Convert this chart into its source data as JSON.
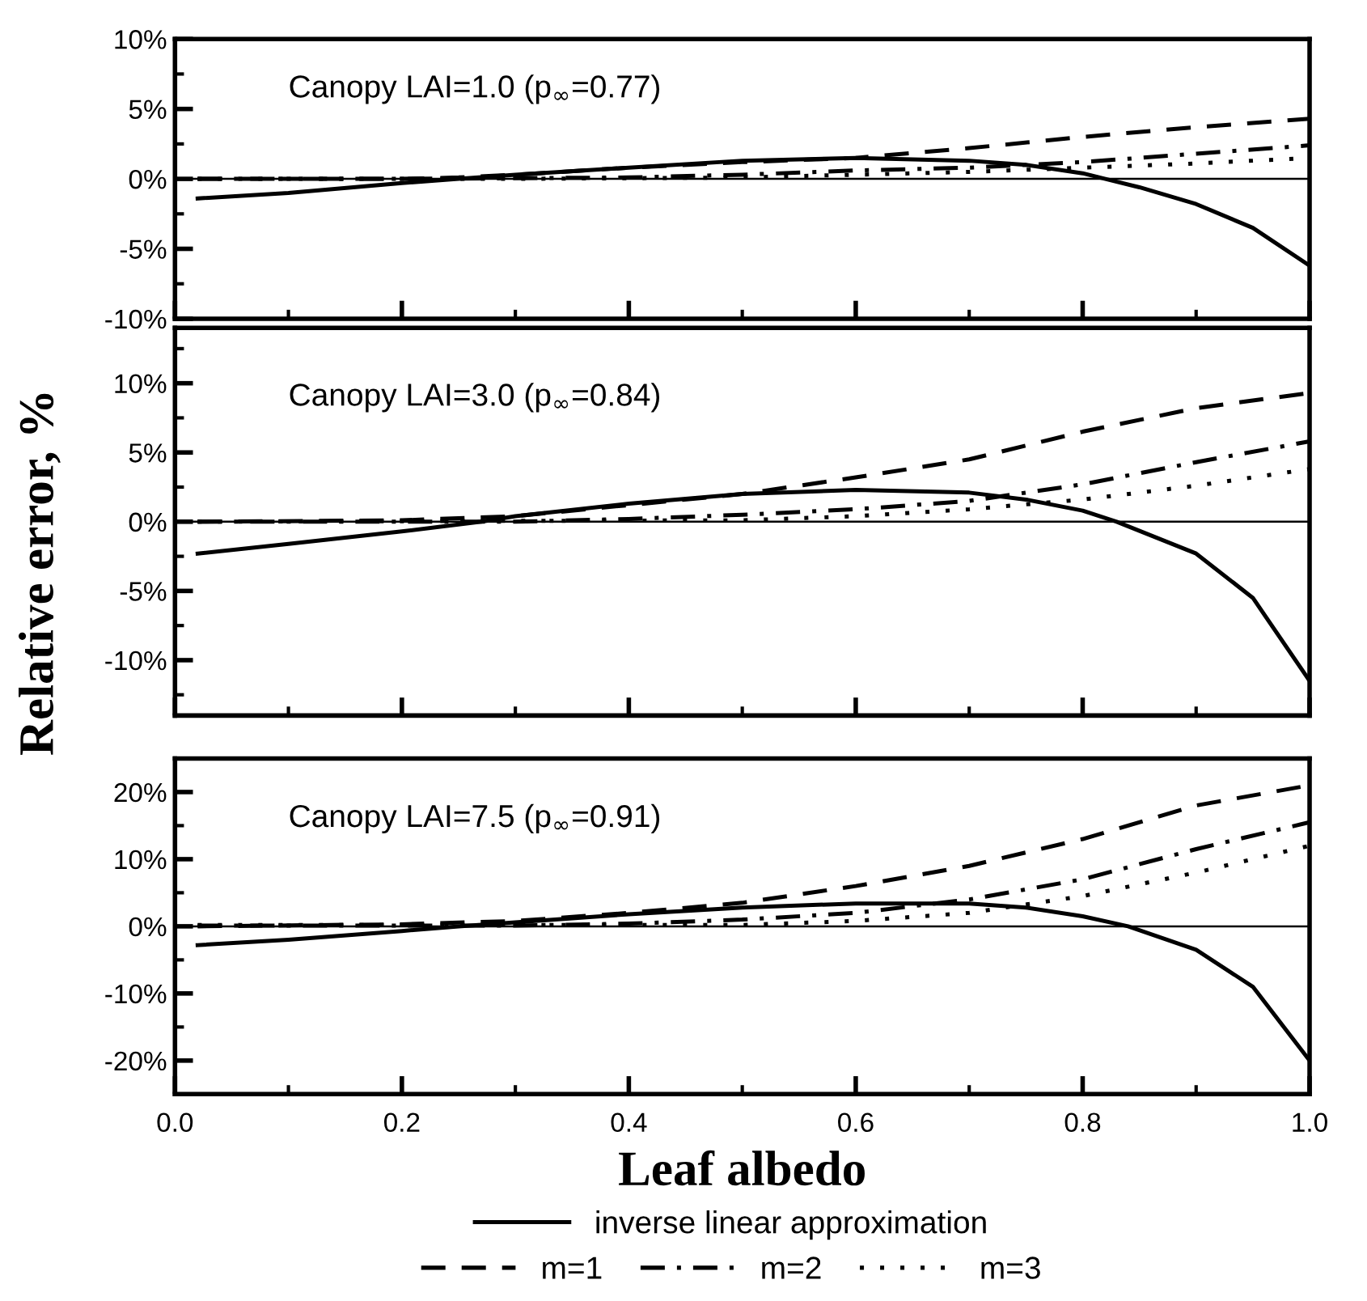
{
  "chart_data": [
    {
      "type": "line",
      "annotations": [
        "Canopy LAI=1.0 (p$_{∞}$=0.77)"
      ],
      "xlim": [
        0,
        1
      ],
      "ylim": [
        -10,
        10
      ],
      "tick_labels": "y",
      "grid": false,
      "legend": "bottom",
      "xticks": [
        0,
        {
          "value": 0.1,
          "label": null
        },
        0.2,
        {
          "value": 0.3,
          "label": null
        },
        0.4,
        {
          "value": 0.5,
          "label": null
        },
        0.6,
        {
          "value": 0.7,
          "label": null
        },
        0.8,
        {
          "value": 0.9,
          "label": null
        },
        1
      ],
      "yticks": [
        {
          "value": -10,
          "label": "-10%"
        },
        {
          "value": -7.5,
          "label": null
        },
        {
          "value": -5,
          "label": "-5%"
        },
        {
          "value": -2.5,
          "label": null
        },
        {
          "value": 0,
          "label": "0%"
        },
        {
          "value": 2.5,
          "label": null
        },
        {
          "value": 5,
          "label": "5%"
        },
        {
          "value": 7.5,
          "label": null
        },
        {
          "value": 10,
          "label": "10%"
        }
      ],
      "ref_lines": [
        {
          "axis": "y",
          "value": 0,
          "color": "#000000",
          "line_style": "solid"
        }
      ],
      "series": [
        {
          "name": "inverse linear approximation",
          "color": "#000000",
          "line_style": "solid",
          "x": [
            0.02,
            0.1,
            0.2,
            0.25,
            0.3,
            0.4,
            0.5,
            0.6,
            0.7,
            0.75,
            0.8,
            0.82,
            0.85,
            0.9,
            0.95,
            1.0
          ],
          "values": [
            -1.4,
            -1.0,
            -0.3,
            0,
            0.3,
            0.8,
            1.3,
            1.5,
            1.3,
            1.0,
            0.4,
            0,
            -0.6,
            -1.8,
            -3.5,
            -6.2
          ]
        },
        {
          "name": "m=1",
          "color": "#000000",
          "line_style": "dashed",
          "x": [
            0.02,
            0.1,
            0.2,
            0.25,
            0.3,
            0.4,
            0.5,
            0.6,
            0.7,
            0.8,
            0.9,
            1.0
          ],
          "values": [
            0,
            0,
            0,
            0.1,
            0.3,
            0.8,
            1.2,
            1.5,
            2.2,
            3.0,
            3.7,
            4.3
          ]
        },
        {
          "name": "m=2",
          "color": "#000000",
          "line_style": "dashdot",
          "x": [
            0.02,
            0.2,
            0.4,
            0.5,
            0.6,
            0.7,
            0.8,
            0.9,
            1.0
          ],
          "values": [
            0,
            0,
            0.1,
            0.3,
            0.6,
            0.8,
            1.2,
            1.8,
            2.4
          ]
        },
        {
          "name": "m=3",
          "color": "#000000",
          "line_style": "dotted",
          "x": [
            0.02,
            0.3,
            0.5,
            0.6,
            0.7,
            0.8,
            0.9,
            1.0
          ],
          "values": [
            0,
            0,
            0.1,
            0.3,
            0.5,
            0.8,
            1.1,
            1.5
          ]
        }
      ]
    },
    {
      "type": "line",
      "annotations": [
        "Canopy LAI=3.0 (p$_{∞}$=0.84)"
      ],
      "ylabel": "Relative error, %",
      "xlim": [
        0,
        1
      ],
      "ylim": [
        -14,
        14
      ],
      "tick_labels": "y",
      "grid": false,
      "xticks": [
        0,
        {
          "value": 0.1,
          "label": null
        },
        0.2,
        {
          "value": 0.3,
          "label": null
        },
        0.4,
        {
          "value": 0.5,
          "label": null
        },
        0.6,
        {
          "value": 0.7,
          "label": null
        },
        0.8,
        {
          "value": 0.9,
          "label": null
        },
        1
      ],
      "yticks": [
        {
          "value": -12.5,
          "label": null
        },
        {
          "value": -10,
          "label": "-10%"
        },
        {
          "value": -7.5,
          "label": null
        },
        {
          "value": -5,
          "label": "-5%"
        },
        {
          "value": -2.5,
          "label": null
        },
        {
          "value": 0,
          "label": "0%"
        },
        {
          "value": 2.5,
          "label": null
        },
        {
          "value": 5,
          "label": "5%"
        },
        {
          "value": 7.5,
          "label": null
        },
        {
          "value": 10,
          "label": "10%"
        },
        {
          "value": 12.5,
          "label": null
        }
      ],
      "ref_lines": [
        {
          "axis": "y",
          "value": 0,
          "color": "#000000",
          "line_style": "solid"
        }
      ],
      "series": [
        {
          "color": "#000000",
          "line_style": "solid",
          "x": [
            0.02,
            0.1,
            0.2,
            0.27,
            0.3,
            0.4,
            0.5,
            0.6,
            0.7,
            0.75,
            0.8,
            0.83,
            0.9,
            0.95,
            1.0
          ],
          "values": [
            -2.3,
            -1.6,
            -0.7,
            0,
            0.4,
            1.3,
            2.0,
            2.3,
            2.1,
            1.6,
            0.8,
            0,
            -2.3,
            -5.5,
            -11.5
          ]
        },
        {
          "color": "#000000",
          "line_style": "dashed",
          "x": [
            0.02,
            0.2,
            0.3,
            0.4,
            0.5,
            0.6,
            0.7,
            0.8,
            0.9,
            1.0
          ],
          "values": [
            0,
            0.1,
            0.4,
            1.2,
            2.0,
            3.2,
            4.5,
            6.5,
            8.2,
            9.3
          ]
        },
        {
          "color": "#000000",
          "line_style": "dashdot",
          "x": [
            0.02,
            0.3,
            0.4,
            0.5,
            0.6,
            0.7,
            0.8,
            0.9,
            1.0
          ],
          "values": [
            0,
            0,
            0.2,
            0.5,
            0.9,
            1.5,
            2.7,
            4.3,
            5.8
          ]
        },
        {
          "color": "#000000",
          "line_style": "dotted",
          "x": [
            0.02,
            0.5,
            0.6,
            0.7,
            0.8,
            0.9,
            1.0
          ],
          "values": [
            0,
            0.1,
            0.4,
            0.9,
            1.6,
            2.6,
            3.8
          ]
        }
      ]
    },
    {
      "type": "line",
      "annotations": [
        "Canopy LAI=7.5 (p$_{∞}$=0.91)"
      ],
      "xlabel": "Leaf albedo",
      "xlim": [
        0,
        1
      ],
      "ylim": [
        -25,
        25
      ],
      "grid": false,
      "xticks": [
        {
          "value": 0,
          "label": "0.0"
        },
        {
          "value": 0.1,
          "label": null
        },
        0.2,
        {
          "value": 0.3,
          "label": null
        },
        0.4,
        {
          "value": 0.5,
          "label": null
        },
        0.6,
        {
          "value": 0.7,
          "label": null
        },
        0.8,
        {
          "value": 0.9,
          "label": null
        },
        {
          "value": 1,
          "label": "1.0"
        }
      ],
      "yticks": [
        {
          "value": -20,
          "label": "-20%"
        },
        {
          "value": -15,
          "label": null
        },
        {
          "value": -10,
          "label": "-10%"
        },
        {
          "value": -5,
          "label": null
        },
        {
          "value": 0,
          "label": "0%"
        },
        {
          "value": 5,
          "label": null
        },
        {
          "value": 10,
          "label": "10%"
        },
        {
          "value": 15,
          "label": null
        },
        {
          "value": 20,
          "label": "20%"
        }
      ],
      "ref_lines": [
        {
          "axis": "y",
          "value": 0,
          "color": "#000000",
          "line_style": "solid"
        }
      ],
      "series": [
        {
          "color": "#000000",
          "line_style": "solid",
          "x": [
            0.02,
            0.1,
            0.2,
            0.25,
            0.3,
            0.4,
            0.5,
            0.6,
            0.7,
            0.75,
            0.8,
            0.84,
            0.9,
            0.95,
            1.0
          ],
          "values": [
            -2.8,
            -2.0,
            -0.7,
            0,
            0.6,
            1.8,
            2.8,
            3.4,
            3.4,
            2.8,
            1.5,
            0,
            -3.5,
            -9,
            -20
          ]
        },
        {
          "color": "#000000",
          "line_style": "dashed",
          "x": [
            0.02,
            0.2,
            0.3,
            0.4,
            0.5,
            0.6,
            0.7,
            0.8,
            0.9,
            1.0
          ],
          "values": [
            0,
            0.3,
            0.8,
            2.0,
            3.5,
            6,
            9,
            13,
            18,
            21
          ]
        },
        {
          "color": "#000000",
          "line_style": "dashdot",
          "x": [
            0.02,
            0.3,
            0.4,
            0.5,
            0.6,
            0.7,
            0.8,
            0.9,
            1.0
          ],
          "values": [
            0.1,
            0.1,
            0.4,
            1.0,
            2.0,
            4,
            7,
            11.5,
            15.5
          ]
        },
        {
          "color": "#000000",
          "line_style": "dotted",
          "x": [
            0.02,
            0.5,
            0.6,
            0.7,
            0.8,
            0.9,
            1.0
          ],
          "values": [
            0.2,
            0.2,
            0.8,
            2.0,
            4.5,
            8,
            12
          ]
        }
      ]
    }
  ]
}
